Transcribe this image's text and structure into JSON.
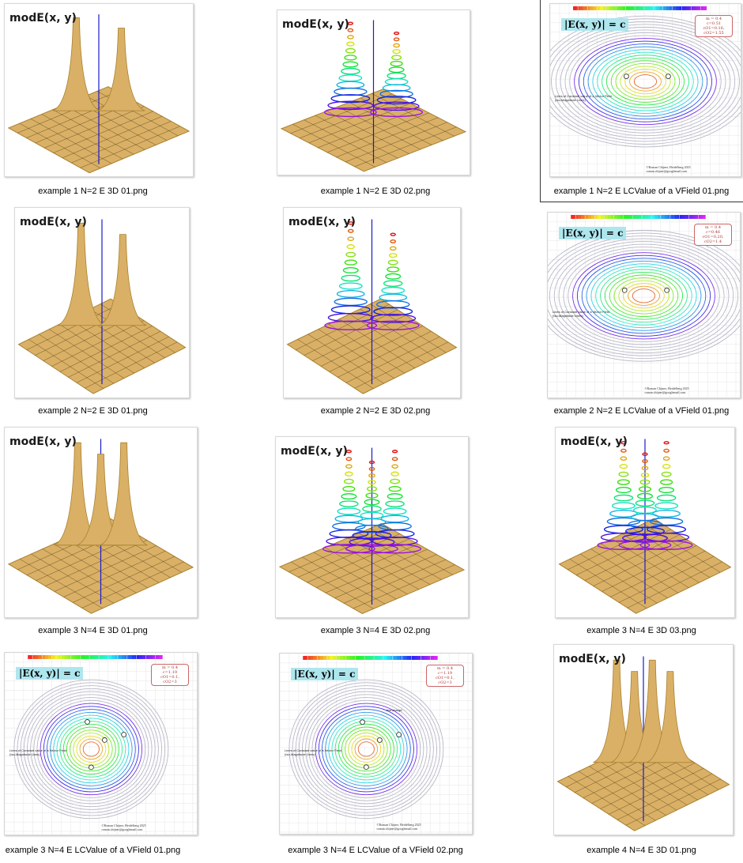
{
  "gallery": {
    "items": [
      {
        "file": "example 1 N=2  E 3D 01.png",
        "title": "modE(x, y)",
        "kind": "surface-plain"
      },
      {
        "file": "example 1 N=2  E 3D 02.png",
        "title": "modE(x, y)",
        "kind": "surface-rainbow"
      },
      {
        "file": "example 1 N=2  E LCValue of a VField 01.png",
        "title": "|E(x, y)| = c",
        "kind": "contour"
      },
      {
        "file": "example 2 N=2  E 3D 01.png",
        "title": "modE(x, y)",
        "kind": "surface-plain"
      },
      {
        "file": "example 2 N=2  E 3D 02.png",
        "title": "modE(x, y)",
        "kind": "surface-rainbow"
      },
      {
        "file": "example 2 N=2  E LCValue of a VField 01.png",
        "title": "|E(x, y)| = c",
        "kind": "contour"
      },
      {
        "file": "example 3 N=4  E 3D 01.png",
        "title": "modE(x, y)",
        "kind": "surface-plain"
      },
      {
        "file": "example 3 N=4  E 3D 02.png",
        "title": "modE(x, y)",
        "kind": "surface-rainbow"
      },
      {
        "file": "example 3 N=4  E 3D 03.png",
        "title": "modE(x, y)",
        "kind": "surface-rainbow"
      },
      {
        "file": "example 3 N=4  E LCValue of a VField 01.png",
        "title": "|E(x, y)| = c",
        "kind": "contour"
      },
      {
        "file": "example 3 N=4  E LCValue of a VField 02.png",
        "title": "|E(x, y)| = c",
        "kind": "contour"
      },
      {
        "file": "example 4  N=4  E 3D 01.png",
        "title": "modE(x, y)",
        "kind": "surface-plain"
      }
    ]
  },
  "contour_labels": {
    "lines_note": "Lines of Constant value of a Vector Field (Iso-Magnitude Lines)",
    "credit_1": "©Roman Chijner, Heidelberg 2025",
    "credit_2": "roman.chijner@googlemail.com",
    "box_m": "m = 0.4",
    "box_c1": "c=0.51 cO1=0.16, cO2=1.55",
    "box_c2": "c=0.46 cO1=0.20, cO2=1.4",
    "box_c3": "c=1.19 cO1=0.1, cO2=3",
    "box_c4": "c=1.19 cO1=0.1, cO2=3",
    "test_charge": "test charge"
  },
  "colors": {
    "surface": "#d9b065",
    "surface_dark": "#a8802e",
    "grid_line": "#3a2a10",
    "axis_blue": "#1a1acc",
    "selection_border": "#333333"
  }
}
